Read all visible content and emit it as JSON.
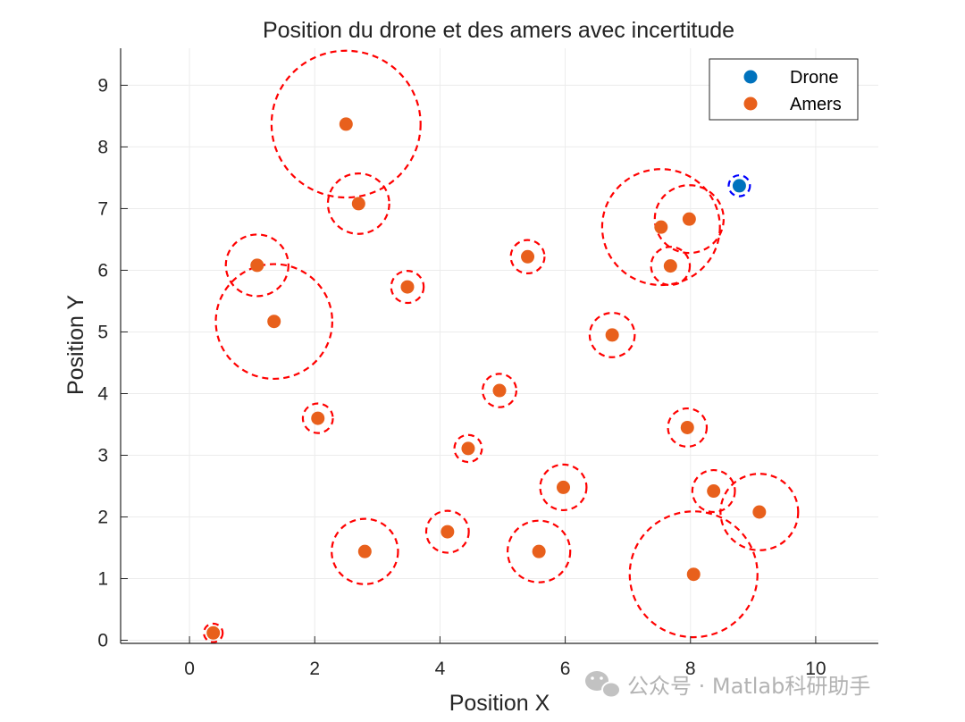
{
  "chart_data": {
    "type": "scatter",
    "title": "Position du drone et des amers avec incertitude",
    "xlabel": "Position X",
    "ylabel": "Position Y",
    "xlim": [
      -1.1,
      11
    ],
    "ylim": [
      -0.05,
      9.6
    ],
    "xticks": [
      0,
      2,
      4,
      6,
      8,
      10
    ],
    "yticks": [
      0,
      1,
      2,
      3,
      4,
      5,
      6,
      7,
      8,
      9
    ],
    "grid": true,
    "legend_position": "top-right",
    "series": [
      {
        "name": "Drone",
        "color": "#0072BD",
        "uncertainty_color": "#0000FF",
        "points": [
          {
            "x": 8.78,
            "y": 7.37,
            "r": 0.17
          }
        ]
      },
      {
        "name": "Amers",
        "color": "#E8601C",
        "uncertainty_color": "#FF0000",
        "points": [
          {
            "x": 0.38,
            "y": 0.12,
            "r": 0.15
          },
          {
            "x": 1.08,
            "y": 6.08,
            "r": 0.5
          },
          {
            "x": 1.35,
            "y": 5.17,
            "r": 0.93
          },
          {
            "x": 2.05,
            "y": 3.6,
            "r": 0.24
          },
          {
            "x": 2.5,
            "y": 8.37,
            "r": 1.19
          },
          {
            "x": 2.7,
            "y": 7.08,
            "r": 0.49
          },
          {
            "x": 2.8,
            "y": 1.44,
            "r": 0.53
          },
          {
            "x": 3.48,
            "y": 5.73,
            "r": 0.26
          },
          {
            "x": 4.12,
            "y": 1.76,
            "r": 0.34
          },
          {
            "x": 4.45,
            "y": 3.11,
            "r": 0.22
          },
          {
            "x": 4.95,
            "y": 4.05,
            "r": 0.27
          },
          {
            "x": 5.4,
            "y": 6.22,
            "r": 0.27
          },
          {
            "x": 5.58,
            "y": 1.44,
            "r": 0.5
          },
          {
            "x": 5.97,
            "y": 2.48,
            "r": 0.37
          },
          {
            "x": 6.75,
            "y": 4.95,
            "r": 0.36
          },
          {
            "x": 7.53,
            "y": 6.7,
            "r": 0.94
          },
          {
            "x": 7.68,
            "y": 6.07,
            "r": 0.31
          },
          {
            "x": 7.95,
            "y": 3.45,
            "r": 0.31
          },
          {
            "x": 7.98,
            "y": 6.83,
            "r": 0.55
          },
          {
            "x": 8.05,
            "y": 1.07,
            "r": 1.02
          },
          {
            "x": 8.37,
            "y": 2.42,
            "r": 0.34
          },
          {
            "x": 9.1,
            "y": 2.08,
            "r": 0.62
          }
        ]
      }
    ]
  },
  "watermark": {
    "text": "公众号 · Matlab科研助手",
    "icon": "wechat-icon"
  }
}
